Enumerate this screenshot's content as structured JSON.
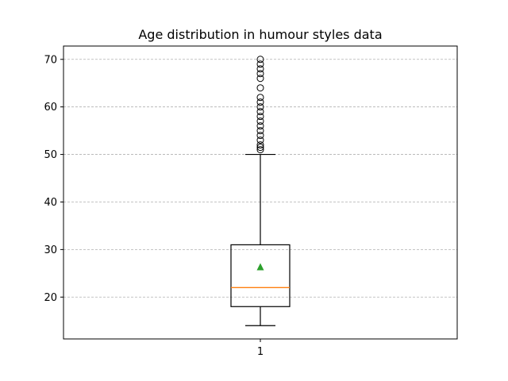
{
  "chart_data": {
    "type": "box",
    "title": "Age distribution in humour styles data",
    "xlabel": "",
    "ylabel": "",
    "categories": [
      "1"
    ],
    "ylim": [
      11.2,
      72.8
    ],
    "yticks": [
      20,
      30,
      40,
      50,
      60,
      70
    ],
    "grid": {
      "axis": "y",
      "style": "dashed"
    },
    "box": {
      "whisker_low": 14,
      "q1": 18,
      "median": 22,
      "mean": 26.3,
      "q3": 31,
      "whisker_high": 50,
      "outliers": [
        51,
        51.5,
        52,
        53,
        54,
        55,
        56,
        57,
        58,
        59,
        60,
        61,
        62,
        64,
        66,
        67,
        68,
        69,
        70
      ]
    },
    "colors": {
      "box": "#000000",
      "median": "#ff7f0e",
      "mean": "#2ca02c",
      "grid": "#b0b0b0"
    }
  }
}
